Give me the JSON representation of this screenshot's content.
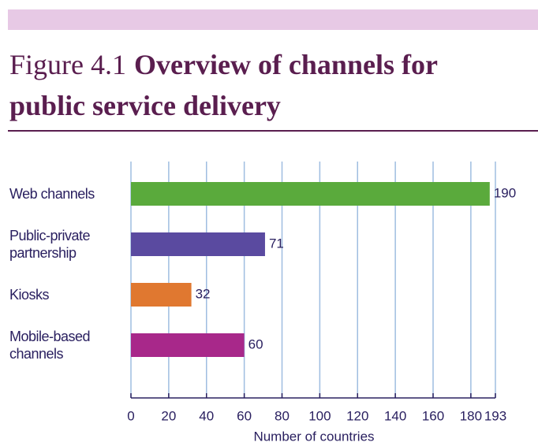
{
  "chart_data": {
    "type": "bar",
    "orientation": "horizontal",
    "figure_label": "Figure 4.1",
    "title": "Overview of channels for public service delivery",
    "categories": [
      "Web channels",
      "Public-private partnership",
      "Kiosks",
      "Mobile-based channels"
    ],
    "values": [
      190,
      71,
      32,
      60
    ],
    "colors": [
      "#5aaa3c",
      "#5a4aa0",
      "#e07830",
      "#a8288a"
    ],
    "xlabel": "Number of countries",
    "xlim": [
      0,
      193
    ],
    "xticks": [
      0,
      20,
      40,
      60,
      80,
      100,
      120,
      140,
      160,
      180,
      193
    ],
    "grid": true
  }
}
